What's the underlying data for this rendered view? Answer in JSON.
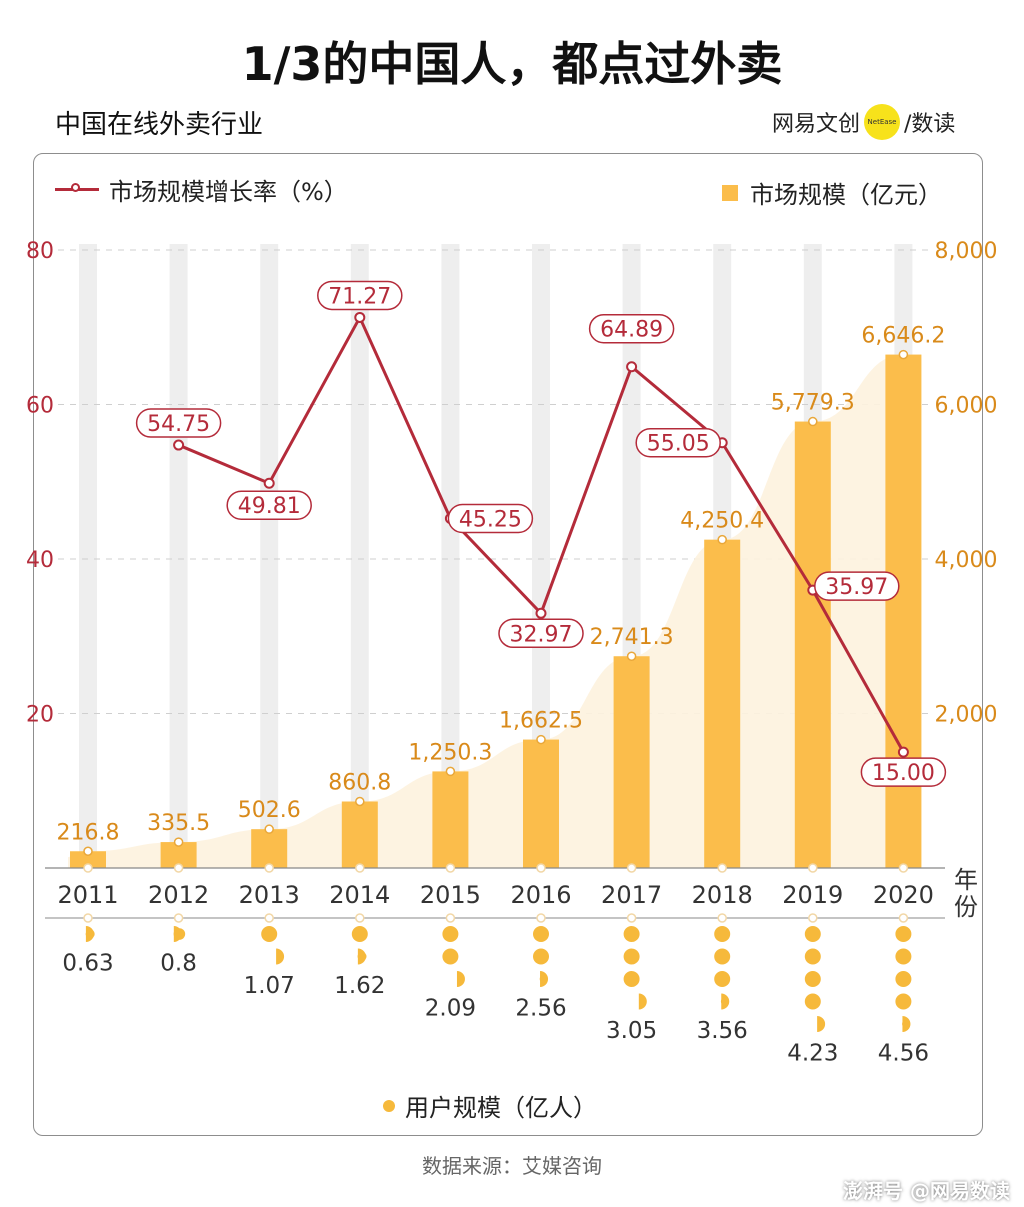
{
  "title": "1/3的中国人，都点过外卖",
  "subtitle": "中国在线外卖行业",
  "brand": {
    "name": "网易文创",
    "logo_text": "NetEase",
    "sub": "/数读"
  },
  "legend": {
    "line": "市场规模增长率（%）",
    "bar": "市场规模（亿元）",
    "users": "用户规模（亿人）"
  },
  "x_axis_unit": "年份",
  "source": "数据来源：艾媒咨询",
  "watermark": "澎湃号 @网易数读",
  "colors": {
    "bar": "#fbbd4b",
    "line": "#b42b3a",
    "left_axis": "#b42b3a",
    "right_axis": "#d98a1a",
    "area": "#fdf2de"
  },
  "chart_data": {
    "type": "bar",
    "categories": [
      "2011",
      "2012",
      "2013",
      "2014",
      "2015",
      "2016",
      "2017",
      "2018",
      "2019",
      "2020"
    ],
    "series": [
      {
        "name": "市场规模（亿元）",
        "type": "bar",
        "axis": "right",
        "values": [
          216.8,
          335.5,
          502.6,
          860.8,
          1250.3,
          1662.5,
          2741.3,
          4250.4,
          5779.3,
          6646.2
        ],
        "labels": [
          "216.8",
          "335.5",
          "502.6",
          "860.8",
          "1,250.3",
          "1,662.5",
          "2,741.3",
          "4,250.4",
          "5,779.3",
          "6,646.2"
        ]
      },
      {
        "name": "市场规模增长率（%）",
        "type": "line",
        "axis": "left",
        "values": [
          null,
          54.75,
          49.81,
          71.27,
          45.25,
          32.97,
          64.89,
          55.05,
          35.97,
          15.0
        ],
        "labels": [
          "",
          "54.75",
          "49.81",
          "71.27",
          "45.25",
          "32.97",
          "64.89",
          "55.05",
          "35.97",
          "15.00"
        ]
      },
      {
        "name": "用户规模（亿人）",
        "type": "dots",
        "values": [
          0.63,
          0.8,
          1.07,
          1.62,
          2.09,
          2.56,
          3.05,
          3.56,
          4.23,
          4.56
        ],
        "labels": [
          "0.63",
          "0.8",
          "1.07",
          "1.62",
          "2.09",
          "2.56",
          "3.05",
          "3.56",
          "4.23",
          "4.56"
        ]
      }
    ],
    "left_axis": {
      "ticks": [
        "20",
        "40",
        "60",
        "80"
      ],
      "values": [
        20,
        40,
        60,
        80
      ],
      "ylim": [
        0,
        80
      ]
    },
    "right_axis": {
      "ticks": [
        "2,000",
        "4,000",
        "6,000",
        "8,000"
      ],
      "values": [
        2000,
        4000,
        6000,
        8000
      ],
      "ylim": [
        0,
        8000
      ]
    },
    "grid": true
  }
}
